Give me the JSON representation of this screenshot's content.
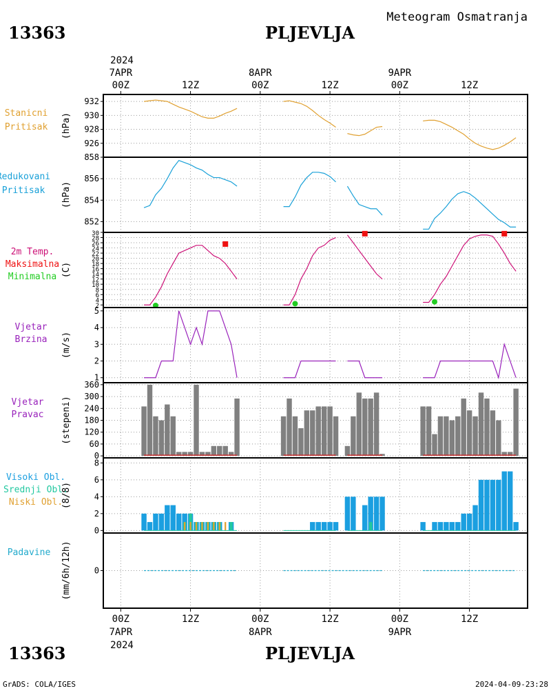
{
  "header": {
    "station_code": "13363",
    "station_name": "PLJEVLJA",
    "subtitle": "Meteogram Osmatranja"
  },
  "footer": {
    "left": "GrADS: COLA/IGES",
    "right": "2024-04-09-23:28"
  },
  "time_axis": {
    "top_year": "2024",
    "bottom_year": "2024",
    "ticks": [
      {
        "hour": 0,
        "top": "00Z",
        "date": "7APR"
      },
      {
        "hour": 12,
        "top": "12Z",
        "date": ""
      },
      {
        "hour": 24,
        "top": "00Z",
        "date": "8APR"
      },
      {
        "hour": 36,
        "top": "12Z",
        "date": ""
      },
      {
        "hour": 48,
        "top": "00Z",
        "date": "9APR"
      },
      {
        "hour": 60,
        "top": "12Z",
        "date": ""
      }
    ],
    "range_hours": [
      -3,
      70
    ]
  },
  "colors": {
    "pressure": "#e0a030",
    "reduced": "#18a0d8",
    "temp_line": "#cc1177",
    "tmax": "#ee1111",
    "tmin": "#22cc22",
    "wind": "#9922bb",
    "wind_dir_bar": "#808080",
    "cloud_high": "#1b9fe0",
    "cloud_mid": "#22c8a0",
    "cloud_low": "#e0a030",
    "precip": "#22aacc"
  },
  "panels": {
    "p1": {
      "labels": [
        "Stanicni",
        "Pritisak"
      ],
      "unit": "(hPa)",
      "ticks": [
        "932",
        "930",
        "928",
        "926"
      ]
    },
    "p2": {
      "labels": [
        "Redukovani",
        "Pritisak"
      ],
      "unit": "(hPa)",
      "ticks": [
        "858",
        "856",
        "854",
        "852"
      ]
    },
    "p3": {
      "labels": [
        "2m Temp.",
        "Maksimalna",
        "Minimalna"
      ],
      "unit": "(C)",
      "ticks": [
        "30",
        "28",
        "26",
        "24",
        "22",
        "20",
        "18",
        "16",
        "14",
        "12",
        "10",
        "8",
        "6",
        "4",
        "2"
      ]
    },
    "p4": {
      "labels": [
        "Vjetar",
        "Brzina"
      ],
      "unit": "(m/s)",
      "ticks": [
        "5",
        "4",
        "3",
        "2",
        "1"
      ]
    },
    "p5": {
      "labels": [
        "Vjetar",
        "Pravac"
      ],
      "unit": "(stepeni)",
      "ticks": [
        "360",
        "300",
        "240",
        "180",
        "120",
        "60",
        "0"
      ]
    },
    "p6": {
      "labels": [
        "Visoki Obl.",
        "Srednji Obl.",
        "Niski Obl."
      ],
      "unit": "(8/8)",
      "ticks": [
        "8",
        "6",
        "4",
        "2",
        "0"
      ]
    },
    "p7": {
      "labels": [
        "Padavine"
      ],
      "unit": "(mm/6h/12h)",
      "ticks": [
        "0"
      ]
    }
  },
  "chart_data": [
    {
      "type": "line",
      "title": "Stanicni Pritisak",
      "ylabel": "(hPa)",
      "ylim": [
        924,
        933
      ],
      "series": [
        {
          "x": [
            4,
            5,
            6,
            7,
            8,
            9,
            10,
            11,
            12,
            13,
            14,
            15,
            16,
            17,
            18,
            19,
            20
          ],
          "values": [
            932.0,
            932.1,
            932.2,
            932.1,
            932.0,
            931.6,
            931.2,
            930.9,
            930.6,
            930.2,
            929.8,
            929.6,
            929.6,
            929.9,
            930.3,
            930.6,
            931.0
          ]
        },
        {
          "x": [
            28,
            29,
            30,
            31,
            32,
            33,
            34,
            35,
            36,
            37
          ],
          "values": [
            932.0,
            932.1,
            931.9,
            931.7,
            931.3,
            930.7,
            930.0,
            929.4,
            928.9,
            928.3
          ]
        },
        {
          "x": [
            39,
            40,
            41,
            42,
            43,
            44,
            45
          ],
          "values": [
            927.4,
            927.2,
            927.1,
            927.3,
            927.8,
            928.3,
            928.4
          ]
        },
        {
          "x": [
            52,
            53,
            54,
            55,
            56,
            57,
            58,
            59,
            60,
            61,
            62,
            63,
            64,
            65,
            66,
            67,
            68
          ],
          "values": [
            929.2,
            929.3,
            929.3,
            929.1,
            928.7,
            928.3,
            927.8,
            927.3,
            926.6,
            926.0,
            925.6,
            925.3,
            925.1,
            925.3,
            925.7,
            926.2,
            926.8
          ]
        }
      ]
    },
    {
      "type": "line",
      "title": "Redukovani Pritisak",
      "ylabel": "(hPa)",
      "ylim": [
        851,
        858
      ],
      "series": [
        {
          "x": [
            4,
            5,
            6,
            7,
            8,
            9,
            10,
            11,
            12,
            13,
            14,
            15,
            16,
            17,
            18,
            19,
            20
          ],
          "values": [
            853.3,
            853.5,
            854.5,
            855.1,
            856.0,
            857.0,
            857.7,
            857.5,
            857.3,
            857.0,
            856.8,
            856.4,
            856.1,
            856.1,
            855.9,
            855.7,
            855.3
          ]
        },
        {
          "x": [
            28,
            29,
            30,
            31,
            32,
            33,
            34,
            35,
            36,
            37
          ],
          "values": [
            853.4,
            853.4,
            854.3,
            855.4,
            856.1,
            856.6,
            856.6,
            856.5,
            856.2,
            855.7
          ]
        },
        {
          "x": [
            39,
            40,
            41,
            42,
            43,
            44,
            45
          ],
          "values": [
            855.3,
            854.4,
            853.6,
            853.4,
            853.2,
            853.2,
            852.6
          ]
        },
        {
          "x": [
            52,
            53,
            54,
            55,
            56,
            57,
            58,
            59,
            60,
            61,
            62,
            63,
            64,
            65,
            66,
            67,
            68
          ],
          "values": [
            851.3,
            851.3,
            852.3,
            852.8,
            853.4,
            854.1,
            854.6,
            854.8,
            854.6,
            854.2,
            853.7,
            853.2,
            852.7,
            852.2,
            851.9,
            851.5,
            851.5
          ]
        }
      ]
    },
    {
      "type": "line",
      "title": "2m Temp. / Maksimalna / Minimalna",
      "ylabel": "(C)",
      "ylim": [
        1,
        30
      ],
      "series": [
        {
          "name": "2m Temp.",
          "x": [
            4,
            5,
            6,
            7,
            8,
            9,
            10,
            11,
            12,
            13,
            14,
            15,
            16,
            17,
            18,
            19,
            20
          ],
          "values": [
            2.0,
            2.0,
            5.0,
            9.0,
            14.0,
            18.0,
            22.0,
            23.0,
            24.0,
            25.0,
            25.0,
            23.0,
            21.0,
            20.0,
            18.0,
            15.0,
            12.0
          ]
        },
        {
          "name": "2m Temp.",
          "x": [
            28,
            29,
            30,
            31,
            32,
            33,
            34,
            35,
            36,
            37
          ],
          "values": [
            2.0,
            2.0,
            6.0,
            12.0,
            16.0,
            21.0,
            24.0,
            25.0,
            27.0,
            28.0
          ]
        },
        {
          "name": "2m Temp.",
          "x": [
            39,
            40,
            41,
            42,
            43,
            44,
            45
          ],
          "values": [
            29.0,
            26.0,
            23.0,
            20.0,
            17.0,
            14.0,
            12.0
          ]
        },
        {
          "name": "2m Temp.",
          "x": [
            52,
            53,
            54,
            55,
            56,
            57,
            58,
            59,
            60,
            61,
            62,
            63,
            64,
            65,
            66,
            67,
            68
          ],
          "values": [
            3.0,
            3.0,
            6.0,
            10.0,
            13.0,
            17.0,
            21.0,
            25.0,
            27.5,
            28.5,
            29.0,
            29.0,
            28.5,
            25.5,
            22.0,
            18.0,
            15.0
          ]
        },
        {
          "name": "Maksimalna",
          "x": [
            18,
            42,
            66
          ],
          "values": [
            25.5,
            29.5,
            29.5
          ]
        },
        {
          "name": "Minimalna",
          "x": [
            6,
            30,
            54
          ],
          "values": [
            1.8,
            2.5,
            3.2
          ]
        }
      ]
    },
    {
      "type": "line",
      "title": "Vjetar Brzina",
      "ylabel": "(m/s)",
      "ylim": [
        0.7,
        5.2
      ],
      "series": [
        {
          "x": [
            4,
            5,
            6,
            7,
            8,
            9,
            10,
            11,
            12,
            13,
            14,
            15,
            16,
            17,
            18,
            19,
            20
          ],
          "values": [
            1,
            1,
            1,
            2,
            2,
            2,
            5,
            4,
            3,
            4,
            3,
            5,
            5,
            5,
            4,
            3,
            1
          ]
        },
        {
          "x": [
            28,
            29,
            30,
            31,
            32,
            33,
            34,
            35,
            36,
            37
          ],
          "values": [
            1,
            1,
            1,
            2,
            2,
            2,
            2,
            2,
            2,
            2
          ]
        },
        {
          "x": [
            39,
            40,
            41,
            42,
            43,
            44,
            45
          ],
          "values": [
            2,
            2,
            2,
            1,
            1,
            1,
            1
          ]
        },
        {
          "x": [
            52,
            53,
            54,
            55,
            56,
            57,
            58,
            59,
            60,
            61,
            62,
            63,
            64,
            65,
            66,
            67,
            68
          ],
          "values": [
            1,
            1,
            1,
            2,
            2,
            2,
            2,
            2,
            2,
            2,
            2,
            2,
            2,
            1,
            3,
            2,
            1
          ]
        }
      ]
    },
    {
      "type": "bar",
      "title": "Vjetar Pravac",
      "ylabel": "(stepeni)",
      "ylim": [
        -10,
        370
      ],
      "x": [
        4,
        5,
        6,
        7,
        8,
        9,
        10,
        11,
        12,
        13,
        14,
        15,
        16,
        17,
        18,
        19,
        20,
        28,
        29,
        30,
        31,
        32,
        33,
        34,
        35,
        36,
        37,
        39,
        40,
        41,
        42,
        43,
        44,
        45,
        52,
        53,
        54,
        55,
        56,
        57,
        58,
        59,
        60,
        61,
        62,
        63,
        64,
        65,
        66,
        67,
        68
      ],
      "values": [
        250,
        360,
        200,
        180,
        260,
        200,
        20,
        20,
        20,
        360,
        20,
        20,
        50,
        50,
        50,
        20,
        290,
        200,
        290,
        200,
        140,
        230,
        230,
        250,
        250,
        250,
        200,
        50,
        200,
        320,
        290,
        290,
        320,
        10,
        250,
        250,
        110,
        200,
        200,
        180,
        200,
        290,
        230,
        200,
        320,
        290,
        230,
        180,
        20,
        20,
        340
      ]
    },
    {
      "type": "bar",
      "title": "Visoki Obl. / Srednji Obl. / Niski Obl.",
      "ylabel": "(8/8)",
      "ylim": [
        -0.3,
        8.6
      ],
      "x": [
        4,
        5,
        6,
        7,
        8,
        9,
        10,
        11,
        12,
        13,
        14,
        15,
        16,
        17,
        18,
        19,
        20,
        28,
        29,
        30,
        31,
        32,
        33,
        34,
        35,
        36,
        37,
        39,
        40,
        41,
        42,
        43,
        44,
        45,
        52,
        53,
        54,
        55,
        56,
        57,
        58,
        59,
        60,
        61,
        62,
        63,
        64,
        65,
        66,
        67,
        68
      ],
      "series": [
        {
          "name": "Visoki Obl.",
          "values": [
            2,
            1,
            2,
            2,
            3,
            3,
            2,
            2,
            2,
            1,
            1,
            1,
            1,
            1,
            0,
            1,
            0,
            0,
            0,
            0,
            0,
            0,
            1,
            1,
            1,
            1,
            1,
            4,
            4,
            0,
            3,
            4,
            4,
            4,
            1,
            0,
            1,
            1,
            1,
            1,
            1,
            2,
            2,
            3,
            6,
            6,
            6,
            6,
            7,
            7,
            1
          ]
        },
        {
          "name": "Srednji Obl.",
          "values": [
            0,
            0,
            0,
            0,
            0,
            0,
            0,
            1,
            2,
            1,
            1,
            1,
            1,
            1,
            0,
            1,
            0,
            0,
            0,
            0,
            0,
            0,
            0,
            0,
            0,
            0,
            0,
            0,
            0,
            0,
            0,
            1,
            0,
            0,
            0,
            0,
            0,
            0,
            0,
            0,
            0,
            0,
            0,
            0,
            0,
            0,
            0,
            0,
            0,
            0,
            0
          ]
        },
        {
          "name": "Niski Obl.",
          "values": [
            0,
            0,
            0,
            0,
            0,
            0,
            0,
            1,
            1,
            1,
            1,
            1,
            1,
            1,
            1,
            0,
            0,
            0,
            0,
            0,
            0,
            0,
            0,
            0,
            0,
            0,
            0,
            0,
            0,
            0,
            0,
            0,
            0,
            0,
            0,
            0,
            0,
            0,
            0,
            0,
            0,
            0,
            0,
            0,
            0,
            0,
            0,
            0,
            0,
            0,
            0
          ]
        }
      ]
    },
    {
      "type": "line",
      "title": "Padavine",
      "ylabel": "(mm/6h/12h)",
      "ylim": [
        -1,
        1
      ],
      "series": [
        {
          "x": [
            4,
            20
          ],
          "values": [
            0,
            0
          ]
        },
        {
          "x": [
            28,
            45
          ],
          "values": [
            0,
            0
          ]
        },
        {
          "x": [
            52,
            68
          ],
          "values": [
            0,
            0
          ]
        }
      ]
    }
  ]
}
